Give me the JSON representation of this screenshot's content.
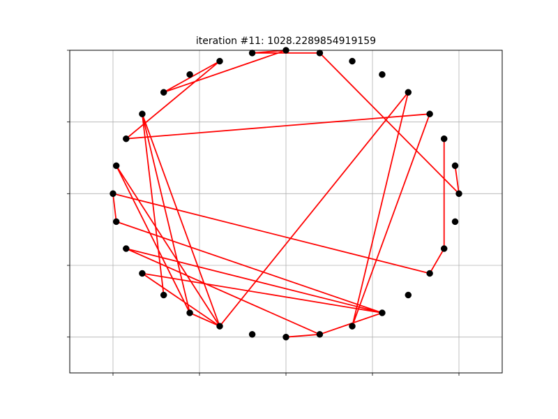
{
  "chart_data": {
    "type": "line",
    "title": "iteration #11: 1028.2289854919159",
    "xlabel": "",
    "ylabel": "",
    "xlim": [
      -1.25,
      1.25
    ],
    "ylim": [
      -1.25,
      1.0
    ],
    "xticks": [
      -1.0,
      -0.5,
      0.0,
      0.5,
      1.0
    ],
    "yticks": [
      -1.0,
      -0.5,
      0.0,
      0.5,
      1.0
    ],
    "grid": true,
    "colors": {
      "route": "#ff0000",
      "points": "#000000",
      "grid": "#b0b0b0"
    },
    "points": [
      {
        "x": 1.0,
        "y": 0.0
      },
      {
        "x": 0.978,
        "y": 0.195
      },
      {
        "x": 0.914,
        "y": -0.383
      },
      {
        "x": 0.831,
        "y": 0.556
      },
      {
        "x": 0.707,
        "y": 0.707
      },
      {
        "x": 0.556,
        "y": 0.831
      },
      {
        "x": 0.383,
        "y": 0.924
      },
      {
        "x": 0.195,
        "y": 0.981
      },
      {
        "x": 0.0,
        "y": 1.0
      },
      {
        "x": -0.195,
        "y": 0.981
      },
      {
        "x": -0.383,
        "y": 0.924
      },
      {
        "x": -0.556,
        "y": 0.831
      },
      {
        "x": -0.707,
        "y": 0.707
      },
      {
        "x": -0.831,
        "y": 0.556
      },
      {
        "x": -0.924,
        "y": 0.383
      },
      {
        "x": -0.981,
        "y": 0.195
      },
      {
        "x": -1.0,
        "y": 0.0
      },
      {
        "x": -0.981,
        "y": -0.195
      },
      {
        "x": -0.924,
        "y": -0.383
      },
      {
        "x": -0.831,
        "y": -0.556
      },
      {
        "x": -0.707,
        "y": -0.707
      },
      {
        "x": -0.556,
        "y": -0.831
      },
      {
        "x": -0.383,
        "y": -0.924
      },
      {
        "x": -0.195,
        "y": -0.981
      },
      {
        "x": 0.0,
        "y": -1.0
      },
      {
        "x": 0.195,
        "y": -0.981
      },
      {
        "x": 0.383,
        "y": -0.924
      },
      {
        "x": 0.556,
        "y": -0.831
      },
      {
        "x": 0.707,
        "y": -0.707
      },
      {
        "x": 0.831,
        "y": -0.556
      },
      {
        "x": 0.914,
        "y": 0.383
      },
      {
        "x": 0.978,
        "y": -0.195
      }
    ],
    "route": [
      {
        "x": 1.0,
        "y": 0.0
      },
      {
        "x": 0.978,
        "y": 0.195
      },
      {
        "x": 1.0,
        "y": 0.0
      },
      {
        "x": 0.195,
        "y": 0.981
      },
      {
        "x": -0.195,
        "y": 0.981
      },
      {
        "x": 0.0,
        "y": 1.0
      },
      {
        "x": -0.707,
        "y": 0.707
      },
      {
        "x": -0.383,
        "y": 0.924
      },
      {
        "x": -0.924,
        "y": 0.383
      },
      {
        "x": 0.831,
        "y": 0.556
      },
      {
        "x": 0.383,
        "y": -0.924
      },
      {
        "x": 0.707,
        "y": 0.707
      },
      {
        "x": -0.383,
        "y": -0.924
      },
      {
        "x": -0.981,
        "y": 0.195
      },
      {
        "x": -0.556,
        "y": -0.831
      },
      {
        "x": -0.383,
        "y": -0.924
      },
      {
        "x": -0.556,
        "y": -0.831
      },
      {
        "x": -0.831,
        "y": 0.556
      },
      {
        "x": -0.707,
        "y": -0.707
      },
      {
        "x": -0.831,
        "y": 0.556
      },
      {
        "x": -0.383,
        "y": -0.924
      },
      {
        "x": -0.831,
        "y": -0.556
      },
      {
        "x": 0.556,
        "y": -0.831
      },
      {
        "x": -0.924,
        "y": -0.383
      },
      {
        "x": 0.195,
        "y": -0.981
      },
      {
        "x": 0.0,
        "y": -1.0
      },
      {
        "x": 0.195,
        "y": -0.981
      },
      {
        "x": 0.556,
        "y": -0.831
      },
      {
        "x": -0.981,
        "y": -0.195
      },
      {
        "x": -1.0,
        "y": 0.0
      },
      {
        "x": 0.831,
        "y": -0.556
      },
      {
        "x": 0.914,
        "y": -0.383
      },
      {
        "x": 0.914,
        "y": 0.383
      }
    ]
  }
}
